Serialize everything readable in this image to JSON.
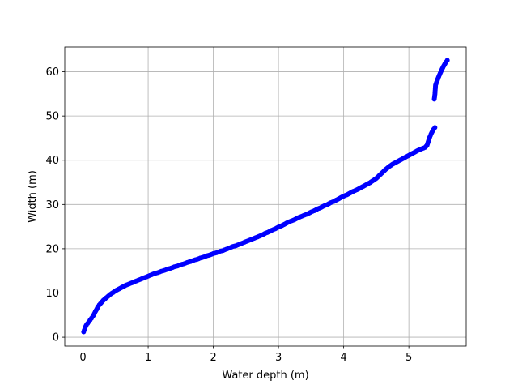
{
  "chart_data": {
    "type": "scatter",
    "title": "",
    "xlabel": "Water depth (m)",
    "ylabel": "Width (m)",
    "xlim": [
      -0.28,
      5.88
    ],
    "ylim": [
      -2.0,
      65.6
    ],
    "xticks": [
      0,
      1,
      2,
      3,
      4,
      5
    ],
    "yticks": [
      0,
      10,
      20,
      30,
      40,
      50,
      60
    ],
    "grid": true,
    "marker_color": "#0000ff",
    "series": [
      {
        "points": [
          [
            0.01,
            1.2
          ],
          [
            0.02,
            1.6
          ],
          [
            0.03,
            2.0
          ],
          [
            0.04,
            2.4
          ],
          [
            0.05,
            2.7
          ],
          [
            0.07,
            3.1
          ],
          [
            0.09,
            3.5
          ],
          [
            0.11,
            3.9
          ],
          [
            0.13,
            4.3
          ],
          [
            0.15,
            4.7
          ],
          [
            0.17,
            5.2
          ],
          [
            0.19,
            5.8
          ],
          [
            0.21,
            6.3
          ],
          [
            0.23,
            6.9
          ],
          [
            0.25,
            7.3
          ],
          [
            0.28,
            7.8
          ],
          [
            0.31,
            8.3
          ],
          [
            0.34,
            8.7
          ],
          [
            0.38,
            9.2
          ],
          [
            0.42,
            9.7
          ],
          [
            0.46,
            10.1
          ],
          [
            0.5,
            10.5
          ],
          [
            0.55,
            10.9
          ],
          [
            0.6,
            11.3
          ],
          [
            0.65,
            11.7
          ],
          [
            0.7,
            12.0
          ],
          [
            0.75,
            12.3
          ],
          [
            0.8,
            12.6
          ],
          [
            0.85,
            12.9
          ],
          [
            0.9,
            13.2
          ],
          [
            0.95,
            13.5
          ],
          [
            1.0,
            13.8
          ],
          [
            1.05,
            14.1
          ],
          [
            1.1,
            14.4
          ],
          [
            1.15,
            14.6
          ],
          [
            1.2,
            14.9
          ],
          [
            1.25,
            15.1
          ],
          [
            1.3,
            15.4
          ],
          [
            1.35,
            15.6
          ],
          [
            1.4,
            15.9
          ],
          [
            1.45,
            16.1
          ],
          [
            1.5,
            16.4
          ],
          [
            1.55,
            16.6
          ],
          [
            1.6,
            16.9
          ],
          [
            1.65,
            17.1
          ],
          [
            1.7,
            17.4
          ],
          [
            1.75,
            17.6
          ],
          [
            1.8,
            17.9
          ],
          [
            1.85,
            18.1
          ],
          [
            1.9,
            18.4
          ],
          [
            1.95,
            18.6
          ],
          [
            2.0,
            18.9
          ],
          [
            2.05,
            19.1
          ],
          [
            2.1,
            19.4
          ],
          [
            2.15,
            19.6
          ],
          [
            2.2,
            19.9
          ],
          [
            2.25,
            20.2
          ],
          [
            2.3,
            20.5
          ],
          [
            2.35,
            20.7
          ],
          [
            2.4,
            21.0
          ],
          [
            2.45,
            21.3
          ],
          [
            2.5,
            21.6
          ],
          [
            2.55,
            21.9
          ],
          [
            2.6,
            22.2
          ],
          [
            2.65,
            22.5
          ],
          [
            2.7,
            22.8
          ],
          [
            2.75,
            23.1
          ],
          [
            2.8,
            23.5
          ],
          [
            2.85,
            23.8
          ],
          [
            2.9,
            24.2
          ],
          [
            2.95,
            24.5
          ],
          [
            3.0,
            24.9
          ],
          [
            3.05,
            25.2
          ],
          [
            3.1,
            25.6
          ],
          [
            3.15,
            26.0
          ],
          [
            3.2,
            26.3
          ],
          [
            3.25,
            26.6
          ],
          [
            3.3,
            27.0
          ],
          [
            3.35,
            27.3
          ],
          [
            3.4,
            27.6
          ],
          [
            3.45,
            27.9
          ],
          [
            3.5,
            28.3
          ],
          [
            3.55,
            28.6
          ],
          [
            3.6,
            29.0
          ],
          [
            3.65,
            29.3
          ],
          [
            3.7,
            29.7
          ],
          [
            3.75,
            30.0
          ],
          [
            3.8,
            30.4
          ],
          [
            3.85,
            30.7
          ],
          [
            3.9,
            31.1
          ],
          [
            3.95,
            31.5
          ],
          [
            4.0,
            31.9
          ],
          [
            4.05,
            32.2
          ],
          [
            4.1,
            32.6
          ],
          [
            4.15,
            33.0
          ],
          [
            4.2,
            33.3
          ],
          [
            4.25,
            33.7
          ],
          [
            4.3,
            34.1
          ],
          [
            4.35,
            34.5
          ],
          [
            4.4,
            34.9
          ],
          [
            4.45,
            35.4
          ],
          [
            4.5,
            35.9
          ],
          [
            4.55,
            36.6
          ],
          [
            4.6,
            37.3
          ],
          [
            4.65,
            38.0
          ],
          [
            4.7,
            38.6
          ],
          [
            4.75,
            39.1
          ],
          [
            4.8,
            39.5
          ],
          [
            4.85,
            39.9
          ],
          [
            4.9,
            40.3
          ],
          [
            4.95,
            40.7
          ],
          [
            5.0,
            41.1
          ],
          [
            5.05,
            41.5
          ],
          [
            5.1,
            41.9
          ],
          [
            5.15,
            42.3
          ],
          [
            5.2,
            42.6
          ],
          [
            5.25,
            42.9
          ],
          [
            5.28,
            43.4
          ],
          [
            5.3,
            44.3
          ],
          [
            5.32,
            45.2
          ],
          [
            5.34,
            45.9
          ],
          [
            5.36,
            46.5
          ],
          [
            5.38,
            47.0
          ],
          [
            5.4,
            47.4
          ],
          [
            5.39,
            53.8
          ],
          [
            5.4,
            54.9
          ],
          [
            5.41,
            57.0
          ],
          [
            5.43,
            57.8
          ],
          [
            5.45,
            58.6
          ],
          [
            5.47,
            59.3
          ],
          [
            5.49,
            60.0
          ],
          [
            5.51,
            60.6
          ],
          [
            5.53,
            61.2
          ],
          [
            5.55,
            61.7
          ],
          [
            5.57,
            62.2
          ],
          [
            5.59,
            62.6
          ]
        ]
      }
    ]
  }
}
